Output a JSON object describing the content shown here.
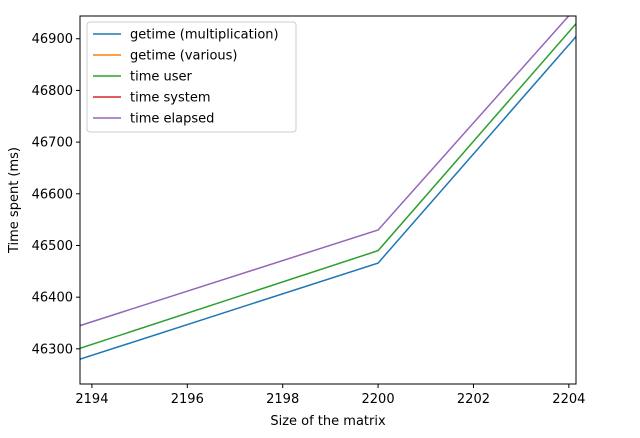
{
  "chart_data": {
    "type": "line",
    "title": "",
    "xlabel": "Size of the matrix",
    "ylabel": "Time spent (ms)",
    "xlim": [
      2193.75,
      2204.15
    ],
    "ylim": [
      46232,
      46944
    ],
    "xticks": [
      2194,
      2196,
      2198,
      2200,
      2202,
      2204
    ],
    "yticks": [
      46300,
      46400,
      46500,
      46600,
      46700,
      46800,
      46900
    ],
    "grid": false,
    "legend_position": "top-left",
    "series": [
      {
        "name": "getime (multiplication)",
        "color": "#1f77b4",
        "x": [
          2193.75,
          2200,
          2204.15
        ],
        "y": [
          46280,
          46466,
          46904
        ]
      },
      {
        "name": "getime (various)",
        "color": "#ff7f0e",
        "x": [],
        "y": []
      },
      {
        "name": "time user",
        "color": "#2ca02c",
        "x": [
          2193.75,
          2200,
          2204.15
        ],
        "y": [
          46301,
          46490,
          46929
        ]
      },
      {
        "name": "time system",
        "color": "#d62728",
        "x": [],
        "y": []
      },
      {
        "name": "time elapsed",
        "color": "#9467bd",
        "x": [
          2193.75,
          2200,
          2204.15
        ],
        "y": [
          46345,
          46530,
          46960
        ]
      }
    ]
  }
}
